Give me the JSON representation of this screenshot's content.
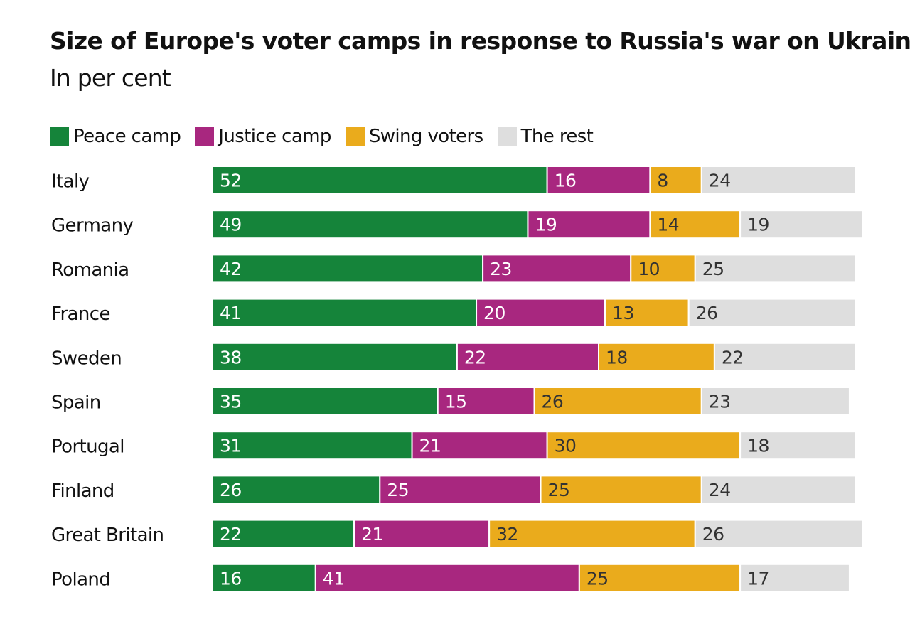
{
  "title": "Size of Europe's voter camps in response to Russia's war on Ukraine",
  "subtitle": "In per cent",
  "colors": {
    "peace": "#15843a",
    "justice": "#a8277f",
    "swing": "#eaab1c",
    "rest": "#dedede",
    "label_on_dark": "#ffffff",
    "label_on_light": "#333333"
  },
  "chart_data": {
    "type": "bar",
    "orientation": "horizontal",
    "stacked": true,
    "unit": "per cent",
    "xlim": [
      0,
      100
    ],
    "legend_position": "top-left",
    "grid": false,
    "categories": [
      "Italy",
      "Germany",
      "Romania",
      "France",
      "Sweden",
      "Spain",
      "Portugal",
      "Finland",
      "Great Britain",
      "Poland"
    ],
    "series": [
      {
        "name": "Peace camp",
        "key": "peace",
        "values": [
          52,
          49,
          42,
          41,
          38,
          35,
          31,
          26,
          22,
          16
        ]
      },
      {
        "name": "Justice camp",
        "key": "justice",
        "values": [
          16,
          19,
          23,
          20,
          22,
          15,
          21,
          25,
          21,
          41
        ]
      },
      {
        "name": "Swing voters",
        "key": "swing",
        "values": [
          8,
          14,
          10,
          13,
          18,
          26,
          30,
          25,
          32,
          25
        ]
      },
      {
        "name": "The rest",
        "key": "rest",
        "values": [
          24,
          19,
          25,
          26,
          22,
          23,
          18,
          24,
          26,
          17
        ]
      }
    ]
  }
}
